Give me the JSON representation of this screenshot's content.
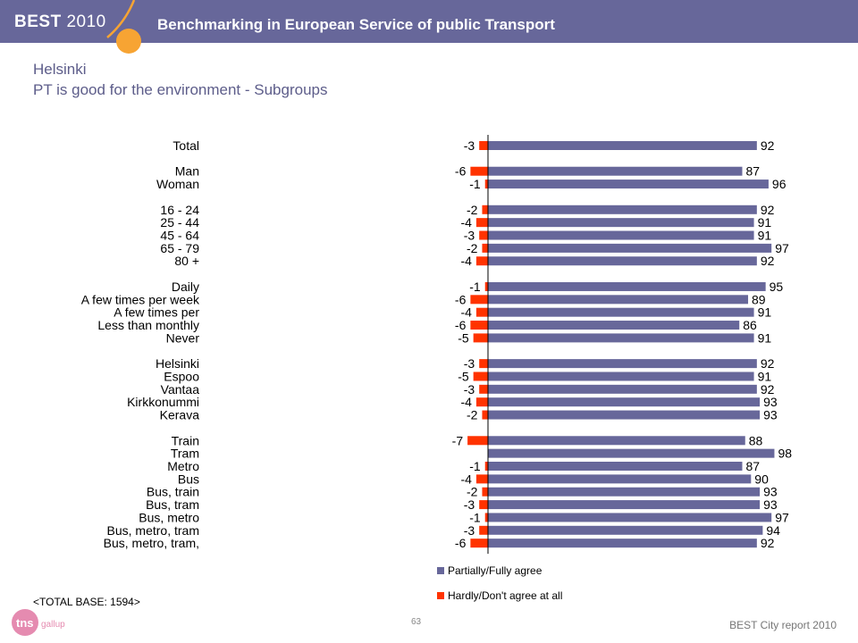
{
  "header": {
    "brand": "BEST",
    "year": "2010",
    "title": "Benchmarking in European Service of public Transport"
  },
  "page": {
    "city": "Helsinki",
    "subtitle": "PT is good for the environment - Subgroups",
    "base": "<TOTAL BASE: 1594>",
    "page_number": "63",
    "footer": "BEST City report 2010",
    "logo_text": "tns",
    "logo_sub": "gallup"
  },
  "colors": {
    "header_bg": "#67679a",
    "agree": "#67679a",
    "disagree": "#ff3300",
    "accent": "#f7a433"
  },
  "chart_data": {
    "type": "bar",
    "orientation": "horizontal",
    "legend": [
      "Partially/Fully agree",
      "Hardly/Don't agree at all"
    ],
    "legend_position": "bottom",
    "groups": [
      {
        "rows": [
          {
            "label": "Total",
            "disagree": -3,
            "agree": 92
          }
        ]
      },
      {
        "rows": [
          {
            "label": "Man",
            "disagree": -6,
            "agree": 87
          },
          {
            "label": "Woman",
            "disagree": -1,
            "agree": 96
          }
        ]
      },
      {
        "rows": [
          {
            "label": "16 - 24",
            "disagree": -2,
            "agree": 92
          },
          {
            "label": "25 - 44",
            "disagree": -4,
            "agree": 91
          },
          {
            "label": "45 - 64",
            "disagree": -3,
            "agree": 91
          },
          {
            "label": "65 - 79",
            "disagree": -2,
            "agree": 97
          },
          {
            "label": "80 +",
            "disagree": -4,
            "agree": 92
          }
        ]
      },
      {
        "rows": [
          {
            "label": "Daily",
            "disagree": -1,
            "agree": 95
          },
          {
            "label": "A few times per week",
            "disagree": -6,
            "agree": 89
          },
          {
            "label": "A few times per",
            "disagree": -4,
            "agree": 91
          },
          {
            "label": "Less than monthly",
            "disagree": -6,
            "agree": 86
          },
          {
            "label": "Never",
            "disagree": -5,
            "agree": 91
          }
        ]
      },
      {
        "rows": [
          {
            "label": "Helsinki",
            "disagree": -3,
            "agree": 92
          },
          {
            "label": "Espoo",
            "disagree": -5,
            "agree": 91
          },
          {
            "label": "Vantaa",
            "disagree": -3,
            "agree": 92
          },
          {
            "label": "Kirkkonummi",
            "disagree": -4,
            "agree": 93
          },
          {
            "label": "Kerava",
            "disagree": -2,
            "agree": 93
          }
        ]
      },
      {
        "rows": [
          {
            "label": "Train",
            "disagree": -7,
            "agree": 88
          },
          {
            "label": "Tram",
            "disagree": 0,
            "agree": 98
          },
          {
            "label": "Metro",
            "disagree": -1,
            "agree": 87
          },
          {
            "label": "Bus",
            "disagree": -4,
            "agree": 90
          },
          {
            "label": "Bus, train",
            "disagree": -2,
            "agree": 93
          },
          {
            "label": "Bus, tram",
            "disagree": -3,
            "agree": 93
          },
          {
            "label": "Bus, metro",
            "disagree": -1,
            "agree": 97
          },
          {
            "label": "Bus, metro, tram",
            "disagree": -3,
            "agree": 94
          },
          {
            "label": "Bus, metro, tram,",
            "disagree": -6,
            "agree": 92
          }
        ]
      }
    ]
  }
}
